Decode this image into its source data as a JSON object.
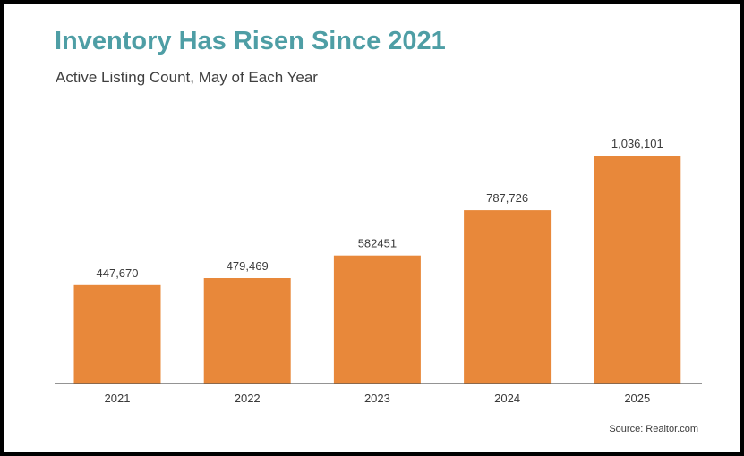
{
  "chart_data": {
    "type": "bar",
    "title": "Inventory Has Risen Since 2021",
    "subtitle": "Active Listing Count, May of Each Year",
    "categories": [
      "2021",
      "2022",
      "2023",
      "2024",
      "2025"
    ],
    "values": [
      447670,
      479469,
      582451,
      787726,
      1036101
    ],
    "value_labels": [
      "447,670",
      "479,469",
      "582451",
      "787,726",
      "1,036,101"
    ],
    "xlabel": "",
    "ylabel": "",
    "ylim": [
      0,
      1100000
    ],
    "grid": false,
    "legend": "none",
    "bar_color": "#e8883a",
    "title_color": "#4e9ea5",
    "source": "Source: Realtor.com"
  }
}
